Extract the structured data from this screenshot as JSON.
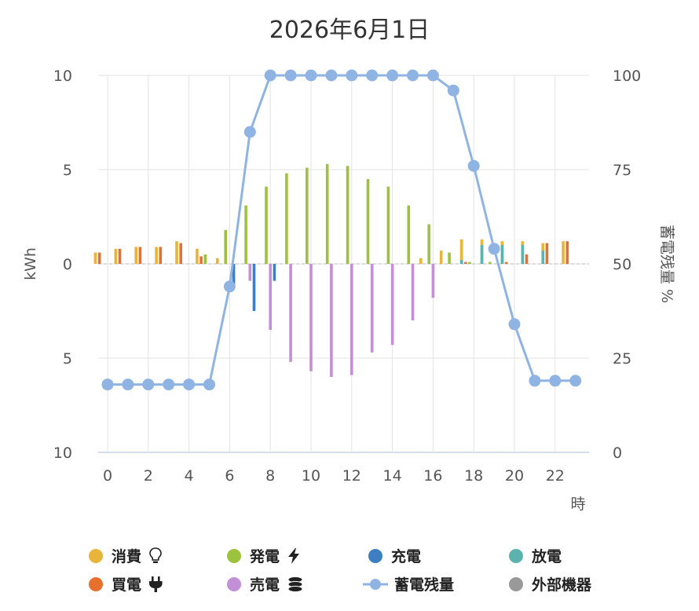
{
  "chart_data": {
    "type": "bar",
    "title": "2026年6月1日",
    "xlabel": "時",
    "ylabel": "kWh",
    "y2label": "蓄電残量 %",
    "x": [
      0,
      1,
      2,
      3,
      4,
      5,
      6,
      7,
      8,
      9,
      10,
      11,
      12,
      13,
      14,
      15,
      16,
      17,
      18,
      19,
      20,
      21,
      22,
      23
    ],
    "x_ticks": [
      "0",
      "2",
      "4",
      "6",
      "8",
      "10",
      "12",
      "14",
      "16",
      "18",
      "20",
      "22"
    ],
    "y_ticks_left": [
      "10",
      "5",
      "0",
      "5",
      "10"
    ],
    "y_ticks_right": [
      "100",
      "75",
      "50",
      "25",
      "0"
    ],
    "ylim": [
      -10,
      10
    ],
    "y2lim": [
      0,
      100
    ],
    "grid": true,
    "legend_position": "bottom",
    "series": [
      {
        "name": "消費",
        "kind": "bar",
        "color": "#e8b43a",
        "icon": "lightbulb-icon",
        "values": [
          0.6,
          0.8,
          0.9,
          0.9,
          1.2,
          0.8,
          0.3,
          0,
          0,
          0,
          0,
          0,
          0,
          0,
          0,
          0,
          0.3,
          0.7,
          1.3,
          1.3,
          1.2,
          1.2,
          1.1,
          1.2
        ]
      },
      {
        "name": "買電",
        "kind": "bar",
        "color": "#e8702f",
        "icon": "plug-icon",
        "values": [
          0.6,
          0.8,
          0.9,
          0.9,
          1.1,
          0.4,
          0,
          0,
          0,
          0,
          0,
          0,
          0,
          0,
          0,
          0,
          0,
          0,
          0.1,
          0,
          0.1,
          0.5,
          1.1,
          1.2
        ]
      },
      {
        "name": "発電",
        "kind": "bar",
        "color": "#9cc23e",
        "icon": "bolt-icon",
        "values": [
          0,
          0,
          0,
          0,
          0,
          0.5,
          1.8,
          3.1,
          4.1,
          4.8,
          5.1,
          5.3,
          5.2,
          4.5,
          4.1,
          3.1,
          2.1,
          0.6,
          0.1,
          0.1,
          0,
          0,
          0,
          0
        ]
      },
      {
        "name": "売電",
        "kind": "bar",
        "color": "#c38fd6",
        "icon": "coins-icon",
        "values": [
          0,
          0,
          0,
          0,
          0,
          0,
          0,
          -0.9,
          -3.5,
          -5.2,
          -5.7,
          -6,
          -5.9,
          -4.7,
          -4.3,
          -3,
          -1.8,
          0,
          0,
          0,
          0,
          0,
          0,
          0
        ]
      },
      {
        "name": "充電",
        "kind": "bar",
        "color": "#3d7fc1",
        "icon": "",
        "values": [
          0,
          0,
          0,
          0,
          0,
          0,
          -1.1,
          -2.5,
          -0.9,
          0,
          0,
          0,
          0,
          0,
          0,
          0,
          0,
          0,
          0,
          0,
          0,
          0,
          0,
          0
        ]
      },
      {
        "name": "放電",
        "kind": "bar",
        "color": "#5cb3ae",
        "icon": "",
        "values": [
          0,
          0,
          0,
          0,
          0,
          0,
          0,
          0,
          0,
          0,
          0,
          0,
          0,
          0,
          0,
          0,
          0,
          0.2,
          1,
          1,
          1,
          0.7,
          0,
          0
        ]
      },
      {
        "name": "蓄電残量",
        "kind": "line",
        "axis": "right",
        "color": "#8fb4e3",
        "icon": "",
        "values": [
          18,
          18,
          18,
          18,
          18,
          18,
          44,
          85,
          100,
          100,
          100,
          100,
          100,
          100,
          100,
          100,
          100,
          96,
          76,
          54,
          34,
          19,
          19,
          19
        ]
      },
      {
        "name": "外部機器",
        "kind": "bar",
        "color": "#999999",
        "icon": "",
        "values": [
          0,
          0,
          0,
          0,
          0,
          0,
          0,
          0,
          0,
          0,
          0,
          0,
          0,
          0,
          0,
          0,
          0,
          0,
          0,
          0,
          0,
          0,
          0,
          0
        ]
      }
    ]
  }
}
